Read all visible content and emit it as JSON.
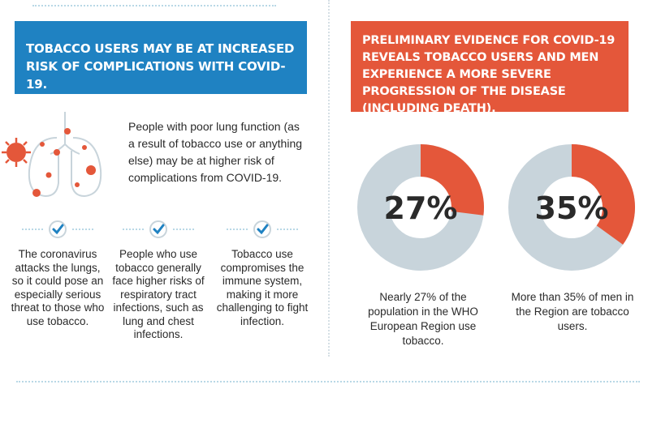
{
  "left_panel": {
    "banner": "Tobacco users may be at increased risk of complications with COVID-19.",
    "lung_text": "People with poor lung function (as a result of tobacco use or anything else) may be at higher risk of complications from COVID-19.",
    "points": [
      {
        "text": "The coronavirus attacks the lungs, so it could pose an especially serious threat to those who use tobacco."
      },
      {
        "text": "People who use tobacco generally face higher risks of respiratory tract infections, such as lung and chest infections."
      },
      {
        "text": "Tobacco use compromises the immune system, making it more challenging to fight infection."
      }
    ]
  },
  "right_panel": {
    "banner": "Preliminary evidence for COVID-19 reveals tobacco users and men experience a more severe progression of the disease (including death).",
    "stats": [
      {
        "percent": 27,
        "label": "27%",
        "caption": "Nearly 27% of the population in the WHO European Region use tobacco."
      },
      {
        "percent": 35,
        "label": "35%",
        "caption": "More than 35% of men in the Region are tobacco users."
      }
    ]
  },
  "colors": {
    "blue": "#1f82c2",
    "red": "#e4573a",
    "donut_bg": "#c8d4db",
    "check": "#1f82c2"
  }
}
